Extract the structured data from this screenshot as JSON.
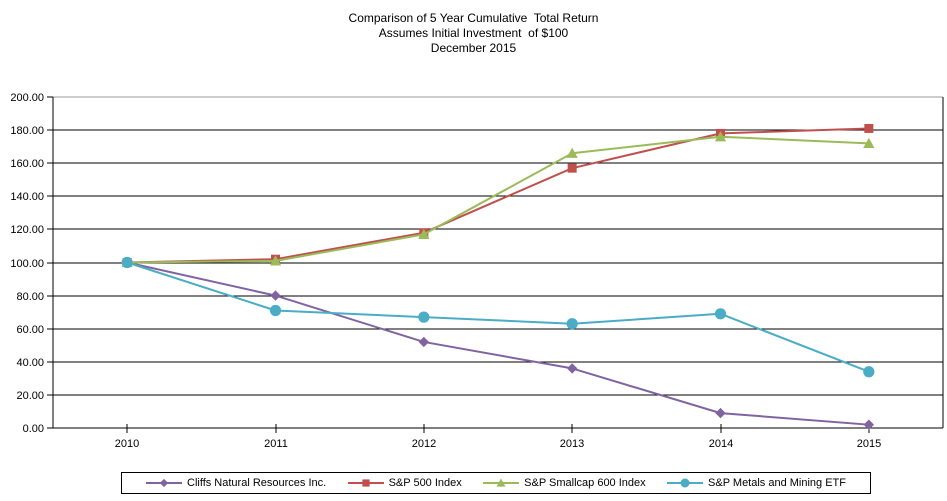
{
  "title": {
    "line1": "Comparison of 5 Year Cumulative  Total Return",
    "line2": "Assumes Initial Investment  of $100",
    "line3": "December 2015"
  },
  "chart_data": {
    "type": "line",
    "categories": [
      "2010",
      "2011",
      "2012",
      "2013",
      "2014",
      "2015"
    ],
    "series": [
      {
        "name": "Cliffs Natural Resources Inc.",
        "marker": "diamond",
        "color": "#8064A2",
        "values": [
          100,
          80,
          52,
          36,
          9,
          2
        ]
      },
      {
        "name": "S&P 500 Index",
        "marker": "square",
        "color": "#C0504D",
        "values": [
          100,
          102,
          118,
          157,
          178,
          181
        ]
      },
      {
        "name": "S&P Smallcap 600 Index",
        "marker": "triangle",
        "color": "#9BBB59",
        "values": [
          100,
          101,
          117,
          166,
          176,
          172
        ]
      },
      {
        "name": "S&P Metals and Mining ETF",
        "marker": "circle",
        "color": "#4BACC6",
        "values": [
          100,
          71,
          67,
          63,
          69,
          34
        ]
      }
    ],
    "title": "Comparison of 5 Year Cumulative Total Return",
    "subtitle1": "Assumes Initial Investment of $100",
    "subtitle2": "December 2015",
    "xlabel": "",
    "ylabel": "",
    "ylim": [
      0,
      200
    ],
    "ytick_step": 20,
    "ytick_labels": [
      "0.00",
      "20.00",
      "40.00",
      "60.00",
      "80.00",
      "100.00",
      "120.00",
      "140.00",
      "160.00",
      "180.00",
      "200.00"
    ],
    "grid": "horizontal",
    "grid_color": "#000000",
    "top_border_color": "#9b9b9b",
    "legend_position": "bottom"
  }
}
